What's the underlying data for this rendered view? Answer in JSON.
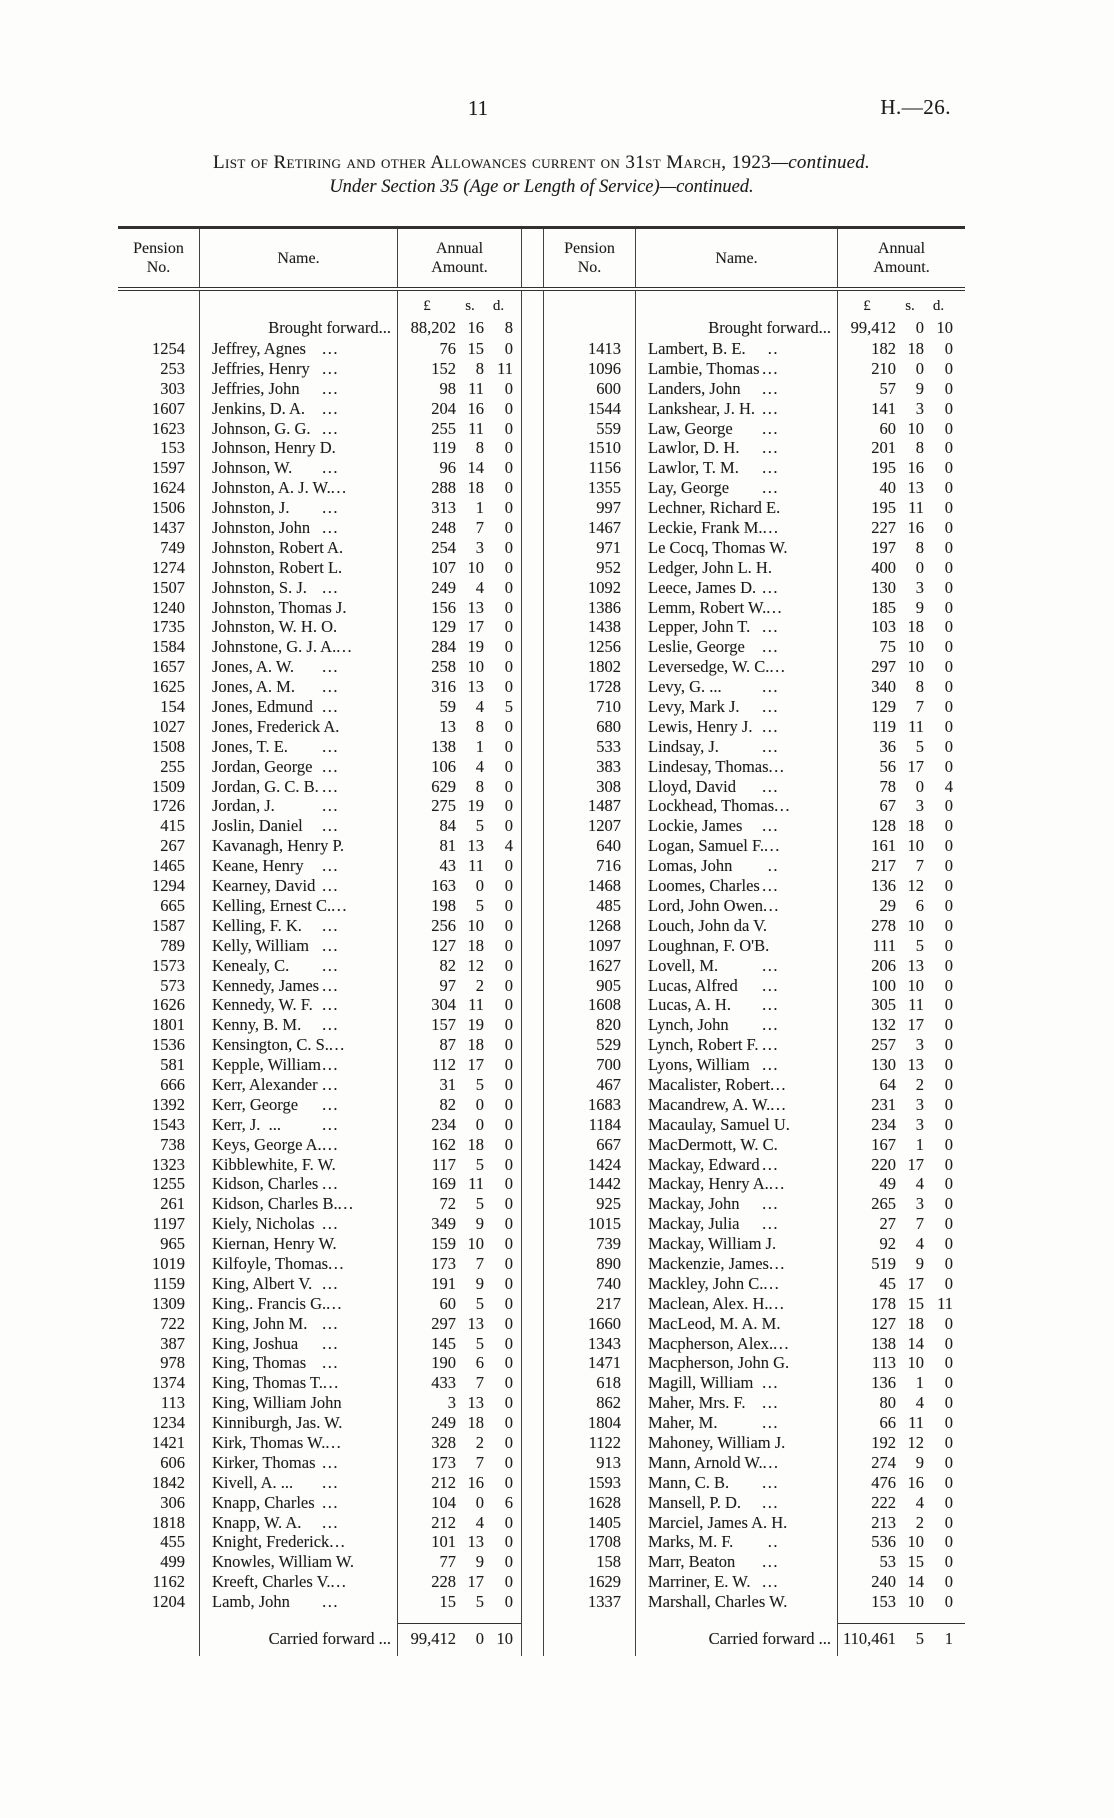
{
  "page": {
    "number": "11",
    "doc_ref": "H.—26."
  },
  "title": {
    "line1": "List of Retiring and other Allowances current on 31st March, 1923",
    "line1_suffix": "—continued.",
    "line2": "Under Section 35 (Age or Length of Service)—continued."
  },
  "table": {
    "col_headers": {
      "pension_no": "Pension No.",
      "name": "Name.",
      "annual_amount": "Annual Amount."
    },
    "currency": {
      "pounds": "£",
      "shillings": "s.",
      "pence": "d."
    },
    "left": {
      "brought_forward": {
        "label": "Brought forward...",
        "pounds": "88,202",
        "s": "16",
        "d": "8"
      },
      "carried_forward": {
        "label": "Carried forward ...",
        "pounds": "99,412",
        "s": "0",
        "d": "10"
      },
      "rows": [
        [
          "1254",
          "Jeffrey, Agnes",
          "...",
          "76",
          "15",
          "0"
        ],
        [
          "253",
          "Jeffries, Henry",
          "...",
          "152",
          "8",
          "11"
        ],
        [
          "303",
          "Jeffries, John",
          "...",
          "98",
          "11",
          "0"
        ],
        [
          "1607",
          "Jenkins, D. A.",
          "...",
          "204",
          "16",
          "0"
        ],
        [
          "1623",
          "Johnson, G. G.",
          "...",
          "255",
          "11",
          "0"
        ],
        [
          "153",
          "Johnson, Henry D.",
          "",
          "119",
          "8",
          "0"
        ],
        [
          "1597",
          "Johnson, W.",
          "...",
          "96",
          "14",
          "0"
        ],
        [
          "1624",
          "Johnston, A. J. W.",
          "...",
          "288",
          "18",
          "0"
        ],
        [
          "1506",
          "Johnston, J.",
          "...",
          "313",
          "1",
          "0"
        ],
        [
          "1437",
          "Johnston, John",
          "...",
          "248",
          "7",
          "0"
        ],
        [
          "749",
          "Johnston, Robert A.",
          "",
          "254",
          "3",
          "0"
        ],
        [
          "1274",
          "Johnston, Robert L.",
          "",
          "107",
          "10",
          "0"
        ],
        [
          "1507",
          "Johnston, S. J.",
          "...",
          "249",
          "4",
          "0"
        ],
        [
          "1240",
          "Johnston, Thomas J.",
          "",
          "156",
          "13",
          "0"
        ],
        [
          "1735",
          "Johnston, W. H. O.",
          "",
          "129",
          "17",
          "0"
        ],
        [
          "1584",
          "Johnstone, G. J. A.",
          "...",
          "284",
          "19",
          "0"
        ],
        [
          "1657",
          "Jones, A. W.",
          "...",
          "258",
          "10",
          "0"
        ],
        [
          "1625",
          "Jones, A. M.",
          "...",
          "316",
          "13",
          "0"
        ],
        [
          "154",
          "Jones, Edmund",
          "...",
          "59",
          "4",
          "5"
        ],
        [
          "1027",
          "Jones, Frederick A.",
          "",
          "13",
          "8",
          "0"
        ],
        [
          "1508",
          "Jones, T. E.",
          "...",
          "138",
          "1",
          "0"
        ],
        [
          "255",
          "Jordan, George",
          "...",
          "106",
          "4",
          "0"
        ],
        [
          "1509",
          "Jordan, G. C. B.",
          "...",
          "629",
          "8",
          "0"
        ],
        [
          "1726",
          "Jordan, J.",
          "...",
          "275",
          "19",
          "0"
        ],
        [
          "415",
          "Joslin, Daniel",
          "...",
          "84",
          "5",
          "0"
        ],
        [
          "267",
          "Kavanagh, Henry P.",
          "",
          "81",
          "13",
          "4"
        ],
        [
          "1465",
          "Keane, Henry",
          "...",
          "43",
          "11",
          "0"
        ],
        [
          "1294",
          "Kearney, David",
          "...",
          "163",
          "0",
          "0"
        ],
        [
          "665",
          "Kelling, Ernest C.",
          "...",
          "198",
          "5",
          "0"
        ],
        [
          "1587",
          "Kelling, F. K.",
          "...",
          "256",
          "10",
          "0"
        ],
        [
          "789",
          "Kelly, William",
          "...",
          "127",
          "18",
          "0"
        ],
        [
          "1573",
          "Kenealy, C.",
          "...",
          "82",
          "12",
          "0"
        ],
        [
          "573",
          "Kennedy, James",
          "...",
          "97",
          "2",
          "0"
        ],
        [
          "1626",
          "Kennedy, W. F.",
          "...",
          "304",
          "11",
          "0"
        ],
        [
          "1801",
          "Kenny, B. M.",
          "...",
          "157",
          "19",
          "0"
        ],
        [
          "1536",
          "Kensington, C. S.",
          "...",
          "87",
          "18",
          "0"
        ],
        [
          "581",
          "Kepple, William",
          "...",
          "112",
          "17",
          "0"
        ],
        [
          "666",
          "Kerr, Alexander",
          "...",
          "31",
          "5",
          "0"
        ],
        [
          "1392",
          "Kerr, George",
          "...",
          "82",
          "0",
          "0"
        ],
        [
          "1543",
          "Kerr, J.  ...",
          "...",
          "234",
          "0",
          "0"
        ],
        [
          "738",
          "Keys, George A.",
          "...",
          "162",
          "18",
          "0"
        ],
        [
          "1323",
          "Kibblewhite, F. W.",
          "",
          "117",
          "5",
          "0"
        ],
        [
          "1255",
          "Kidson, Charles",
          "...",
          "169",
          "11",
          "0"
        ],
        [
          "261",
          "Kidson, Charles B.",
          "...",
          "72",
          "5",
          "0"
        ],
        [
          "1197",
          "Kiely, Nicholas",
          "...",
          "349",
          "9",
          "0"
        ],
        [
          "965",
          "Kiernan, Henry W.",
          "",
          "159",
          "10",
          "0"
        ],
        [
          "1019",
          "Kilfoyle, Thomas",
          "...",
          "173",
          "7",
          "0"
        ],
        [
          "1159",
          "King, Albert V.",
          "...",
          "191",
          "9",
          "0"
        ],
        [
          "1309",
          "King,. Francis G.",
          "...",
          "60",
          "5",
          "0"
        ],
        [
          "722",
          "King, John M.",
          "...",
          "297",
          "13",
          "0"
        ],
        [
          "387",
          "King, Joshua",
          "...",
          "145",
          "5",
          "0"
        ],
        [
          "978",
          "King, Thomas",
          "...",
          "190",
          "6",
          "0"
        ],
        [
          "1374",
          "King, Thomas T.",
          "...",
          "433",
          "7",
          "0"
        ],
        [
          "113",
          "King, William John",
          "",
          "3",
          "13",
          "0"
        ],
        [
          "1234",
          "Kinniburgh, Jas. W.",
          "",
          "249",
          "18",
          "0"
        ],
        [
          "1421",
          "Kirk, Thomas W.",
          "...",
          "328",
          "2",
          "0"
        ],
        [
          "606",
          "Kirker, Thomas",
          "...",
          "173",
          "7",
          "0"
        ],
        [
          "1842",
          "Kivell, A. ...",
          "...",
          "212",
          "16",
          "0"
        ],
        [
          "306",
          "Knapp, Charles",
          "...",
          "104",
          "0",
          "6"
        ],
        [
          "1818",
          "Knapp, W. A.",
          "...",
          "212",
          "4",
          "0"
        ],
        [
          "455",
          "Knight, Frederick",
          "...",
          "101",
          "13",
          "0"
        ],
        [
          "499",
          "Knowles, William W.",
          "",
          "77",
          "9",
          "0"
        ],
        [
          "1162",
          "Kreeft, Charles V.",
          "...",
          "228",
          "17",
          "0"
        ],
        [
          "1204",
          "Lamb, John",
          "...",
          "15",
          "5",
          "0"
        ]
      ]
    },
    "right": {
      "brought_forward": {
        "label": "Brought forward...",
        "pounds": "99,412",
        "s": "0",
        "d": "10"
      },
      "carried_forward": {
        "label": "Carried forward ...",
        "pounds": "110,461",
        "s": "5",
        "d": "1"
      },
      "rows": [
        [
          "1413",
          "Lambert, B. E.",
          "..",
          "182",
          "18",
          "0"
        ],
        [
          "1096",
          "Lambie, Thomas",
          "...",
          "210",
          "0",
          "0"
        ],
        [
          "600",
          "Landers, John",
          "...",
          "57",
          "9",
          "0"
        ],
        [
          "1544",
          "Lankshear, J. H.",
          "...",
          "141",
          "3",
          "0"
        ],
        [
          "559",
          "Law, George",
          "...",
          "60",
          "10",
          "0"
        ],
        [
          "1510",
          "Lawlor, D. H.",
          "...",
          "201",
          "8",
          "0"
        ],
        [
          "1156",
          "Lawlor, T. M.",
          "...",
          "195",
          "16",
          "0"
        ],
        [
          "1355",
          "Lay, George",
          "...",
          "40",
          "13",
          "0"
        ],
        [
          "997",
          "Lechner, Richard E.",
          "",
          "195",
          "11",
          "0"
        ],
        [
          "1467",
          "Leckie, Frank M.",
          "...",
          "227",
          "16",
          "0"
        ],
        [
          "971",
          "Le Cocq, Thomas W.",
          "",
          "197",
          "8",
          "0"
        ],
        [
          "952",
          "Ledger, John L. H.",
          "",
          "400",
          "0",
          "0"
        ],
        [
          "1092",
          "Leece, James D.",
          "...",
          "130",
          "3",
          "0"
        ],
        [
          "1386",
          "Lemm, Robert W.",
          "...",
          "185",
          "9",
          "0"
        ],
        [
          "1438",
          "Lepper, John T.",
          "...",
          "103",
          "18",
          "0"
        ],
        [
          "1256",
          "Leslie, George",
          "...",
          "75",
          "10",
          "0"
        ],
        [
          "1802",
          "Leversedge, W. C.",
          "...",
          "297",
          "10",
          "0"
        ],
        [
          "1728",
          "Levy, G. ...",
          "...",
          "340",
          "8",
          "0"
        ],
        [
          "710",
          "Levy, Mark J.",
          "...",
          "129",
          "7",
          "0"
        ],
        [
          "680",
          "Lewis, Henry J.",
          "...",
          "119",
          "11",
          "0"
        ],
        [
          "533",
          "Lindsay, J.",
          "...",
          "36",
          "5",
          "0"
        ],
        [
          "383",
          "Lindesay, Thomas",
          "...",
          "56",
          "17",
          "0"
        ],
        [
          "308",
          "Lloyd, David",
          "...",
          "78",
          "0",
          "4"
        ],
        [
          "1487",
          "Lockhead, Thomas",
          "...",
          "67",
          "3",
          "0"
        ],
        [
          "1207",
          "Lockie, James",
          "...",
          "128",
          "18",
          "0"
        ],
        [
          "640",
          "Logan, Samuel F.",
          "...",
          "161",
          "10",
          "0"
        ],
        [
          "716",
          "Lomas, John",
          "..",
          "217",
          "7",
          "0"
        ],
        [
          "1468",
          "Loomes, Charles",
          "...",
          "136",
          "12",
          "0"
        ],
        [
          "485",
          "Lord, John Owen",
          "...",
          "29",
          "6",
          "0"
        ],
        [
          "1268",
          "Louch, John da V.",
          "",
          "278",
          "10",
          "0"
        ],
        [
          "1097",
          "Loughnan, F. O'B.",
          "",
          "111",
          "5",
          "0"
        ],
        [
          "1627",
          "Lovell, M.",
          "...",
          "206",
          "13",
          "0"
        ],
        [
          "905",
          "Lucas, Alfred",
          "...",
          "100",
          "10",
          "0"
        ],
        [
          "1608",
          "Lucas, A. H.",
          "...",
          "305",
          "11",
          "0"
        ],
        [
          "820",
          "Lynch, John",
          "...",
          "132",
          "17",
          "0"
        ],
        [
          "529",
          "Lynch, Robert F.",
          "...",
          "257",
          "3",
          "0"
        ],
        [
          "700",
          "Lyons, William",
          "...",
          "130",
          "13",
          "0"
        ],
        [
          "467",
          "Macalister, Robert",
          "...",
          "64",
          "2",
          "0"
        ],
        [
          "1683",
          "Macandrew, A. W.",
          "...",
          "231",
          "3",
          "0"
        ],
        [
          "1184",
          "Macaulay, Samuel U.",
          "",
          "234",
          "3",
          "0"
        ],
        [
          "667",
          "MacDermott, W. C.",
          "",
          "167",
          "1",
          "0"
        ],
        [
          "1424",
          "Mackay, Edward",
          "...",
          "220",
          "17",
          "0"
        ],
        [
          "1442",
          "Mackay, Henry A.",
          "...",
          "49",
          "4",
          "0"
        ],
        [
          "925",
          "Mackay, John",
          "...",
          "265",
          "3",
          "0"
        ],
        [
          "1015",
          "Mackay, Julia",
          "...",
          "27",
          "7",
          "0"
        ],
        [
          "739",
          "Mackay, William J.",
          "",
          "92",
          "4",
          "0"
        ],
        [
          "890",
          "Mackenzie, James",
          "...",
          "519",
          "9",
          "0"
        ],
        [
          "740",
          "Mackley, John C.",
          "...",
          "45",
          "17",
          "0"
        ],
        [
          "217",
          "Maclean, Alex. H.",
          "...",
          "178",
          "15",
          "11"
        ],
        [
          "1660",
          "MacLeod, M. A. M.",
          "",
          "127",
          "18",
          "0"
        ],
        [
          "1343",
          "Macpherson, Alex.",
          "...",
          "138",
          "14",
          "0"
        ],
        [
          "1471",
          "Macpherson, John G.",
          "",
          "113",
          "10",
          "0"
        ],
        [
          "618",
          "Magill, William",
          "...",
          "136",
          "1",
          "0"
        ],
        [
          "862",
          "Maher, Mrs. F.",
          "...",
          "80",
          "4",
          "0"
        ],
        [
          "1804",
          "Maher, M.",
          "...",
          "66",
          "11",
          "0"
        ],
        [
          "1122",
          "Mahoney, William J.",
          "",
          "192",
          "12",
          "0"
        ],
        [
          "913",
          "Mann, Arnold W.",
          "...",
          "274",
          "9",
          "0"
        ],
        [
          "1593",
          "Mann, C. B.",
          "...",
          "476",
          "16",
          "0"
        ],
        [
          "1628",
          "Mansell, P. D.",
          "...",
          "222",
          "4",
          "0"
        ],
        [
          "1405",
          "Marciel, James A. H.",
          "",
          "213",
          "2",
          "0"
        ],
        [
          "1708",
          "Marks, M. F.",
          "..",
          "536",
          "10",
          "0"
        ],
        [
          "158",
          "Marr, Beaton",
          "...",
          "53",
          "15",
          "0"
        ],
        [
          "1629",
          "Marriner, E. W.",
          "...",
          "240",
          "14",
          "0"
        ],
        [
          "1337",
          "Marshall, Charles W.",
          "",
          "153",
          "10",
          "0"
        ]
      ]
    }
  }
}
